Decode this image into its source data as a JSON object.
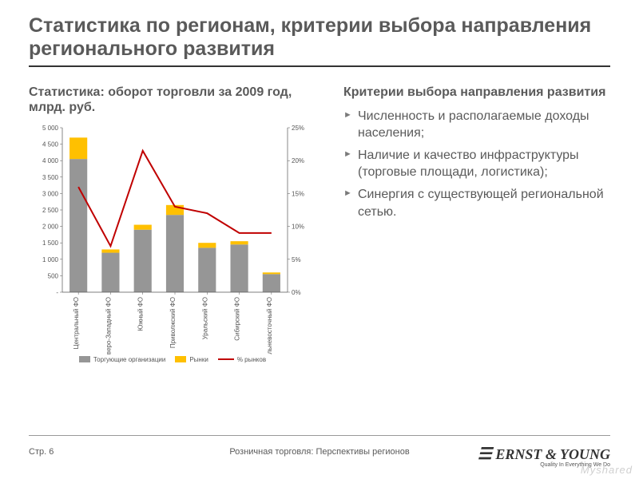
{
  "title": "Статистика по регионам, критерии выбора направления регионального развития",
  "left": {
    "subtitle": "Статистика: оборот торговли за 2009 год, млрд. руб."
  },
  "right": {
    "subtitle": "Критерии выбора направления развития",
    "bullets": [
      "Численность и располагаемые доходы населения;",
      "Наличие и качество инфраструктуры (торговые площади, логистика);",
      "Синергия с существующей региональной сетью."
    ]
  },
  "footer": {
    "page": "Стр. 6",
    "center": "Розничная торговля: Перспективы регионов"
  },
  "logo": {
    "name": "ERNST & YOUNG",
    "tagline": "Quality In Everything We Do"
  },
  "watermark": "Myshared",
  "chart": {
    "type": "bar+line",
    "categories": [
      "Центральный ФО",
      "Северо-Западный ФО",
      "Южный ФО",
      "Приволжский ФО",
      "Уральский ФО",
      "Сибирский ФО",
      "Дальневосточный ФО"
    ],
    "series": {
      "trade_orgs": {
        "label": "Торгующие организации",
        "color": "#969696",
        "values": [
          4050,
          1200,
          1900,
          2350,
          1350,
          1450,
          550
        ]
      },
      "markets": {
        "label": "Рынки",
        "color": "#ffc000",
        "values": [
          650,
          100,
          150,
          300,
          150,
          100,
          50
        ]
      },
      "pct_markets": {
        "label": "% рынков",
        "color": "#c00000",
        "values": [
          16,
          7,
          21.5,
          13,
          12,
          9,
          9
        ]
      }
    },
    "y_left": {
      "min": 0,
      "max": 5000,
      "step": 500,
      "ticks": [
        "-",
        "500",
        "1 000",
        "1 500",
        "2 000",
        "2 500",
        "3 000",
        "3 500",
        "4 000",
        "4 500",
        "5 000"
      ]
    },
    "y_right": {
      "min": 0,
      "max": 25,
      "step": 5,
      "ticks": [
        "0%",
        "5%",
        "10%",
        "15%",
        "20%",
        "25%"
      ]
    },
    "background_color": "#ffffff",
    "grid": false,
    "bar_width": 0.55,
    "axis_color": "#555555",
    "tick_font_size": 8,
    "category_font_size": 8,
    "line_width": 2
  }
}
